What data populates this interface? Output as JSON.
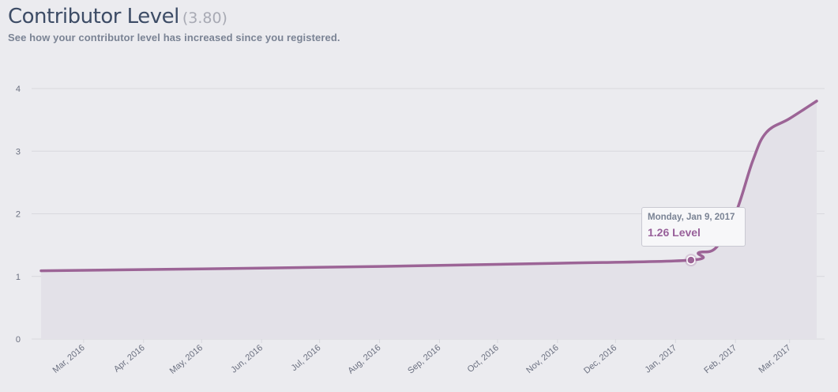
{
  "header": {
    "title": "Contributor Level",
    "level_value": "(3.80)",
    "subtitle": "See how your contributor level has increased since you registered."
  },
  "tooltip": {
    "date": "Monday, Jan 9, 2017",
    "value": "1.26 Level"
  },
  "colors": {
    "line": "#9c6496",
    "area": "#e3e1e8",
    "grid": "#d8d8de",
    "background": "#ebebef"
  },
  "chart_data": {
    "type": "area",
    "ylim": [
      0,
      4
    ],
    "yticks": [
      "0",
      "1",
      "2",
      "3",
      "4"
    ],
    "xticks": [
      "Mar, 2016",
      "Apr, 2016",
      "May, 2016",
      "Jun, 2016",
      "Jul, 2016",
      "Aug, 2016",
      "Sep, 2016",
      "Oct, 2016",
      "Nov, 2016",
      "Dec, 2016",
      "Jan, 2017",
      "Feb, 2017",
      "Mar, 2017"
    ],
    "grid": true,
    "legend": "none",
    "series": [
      {
        "x": [
          "2016-02-08",
          "2016-05-01",
          "2016-08-01",
          "2016-11-01",
          "2017-01-09",
          "2017-01-13",
          "2017-01-22",
          "2017-02-01",
          "2017-02-10",
          "2017-02-17",
          "2017-03-01",
          "2017-03-15"
        ],
        "y": [
          1.09,
          1.12,
          1.16,
          1.21,
          1.26,
          1.38,
          1.46,
          2.0,
          2.85,
          3.3,
          3.52,
          3.8
        ]
      }
    ],
    "highlight": {
      "x": "2017-01-09",
      "y": 1.26
    }
  }
}
